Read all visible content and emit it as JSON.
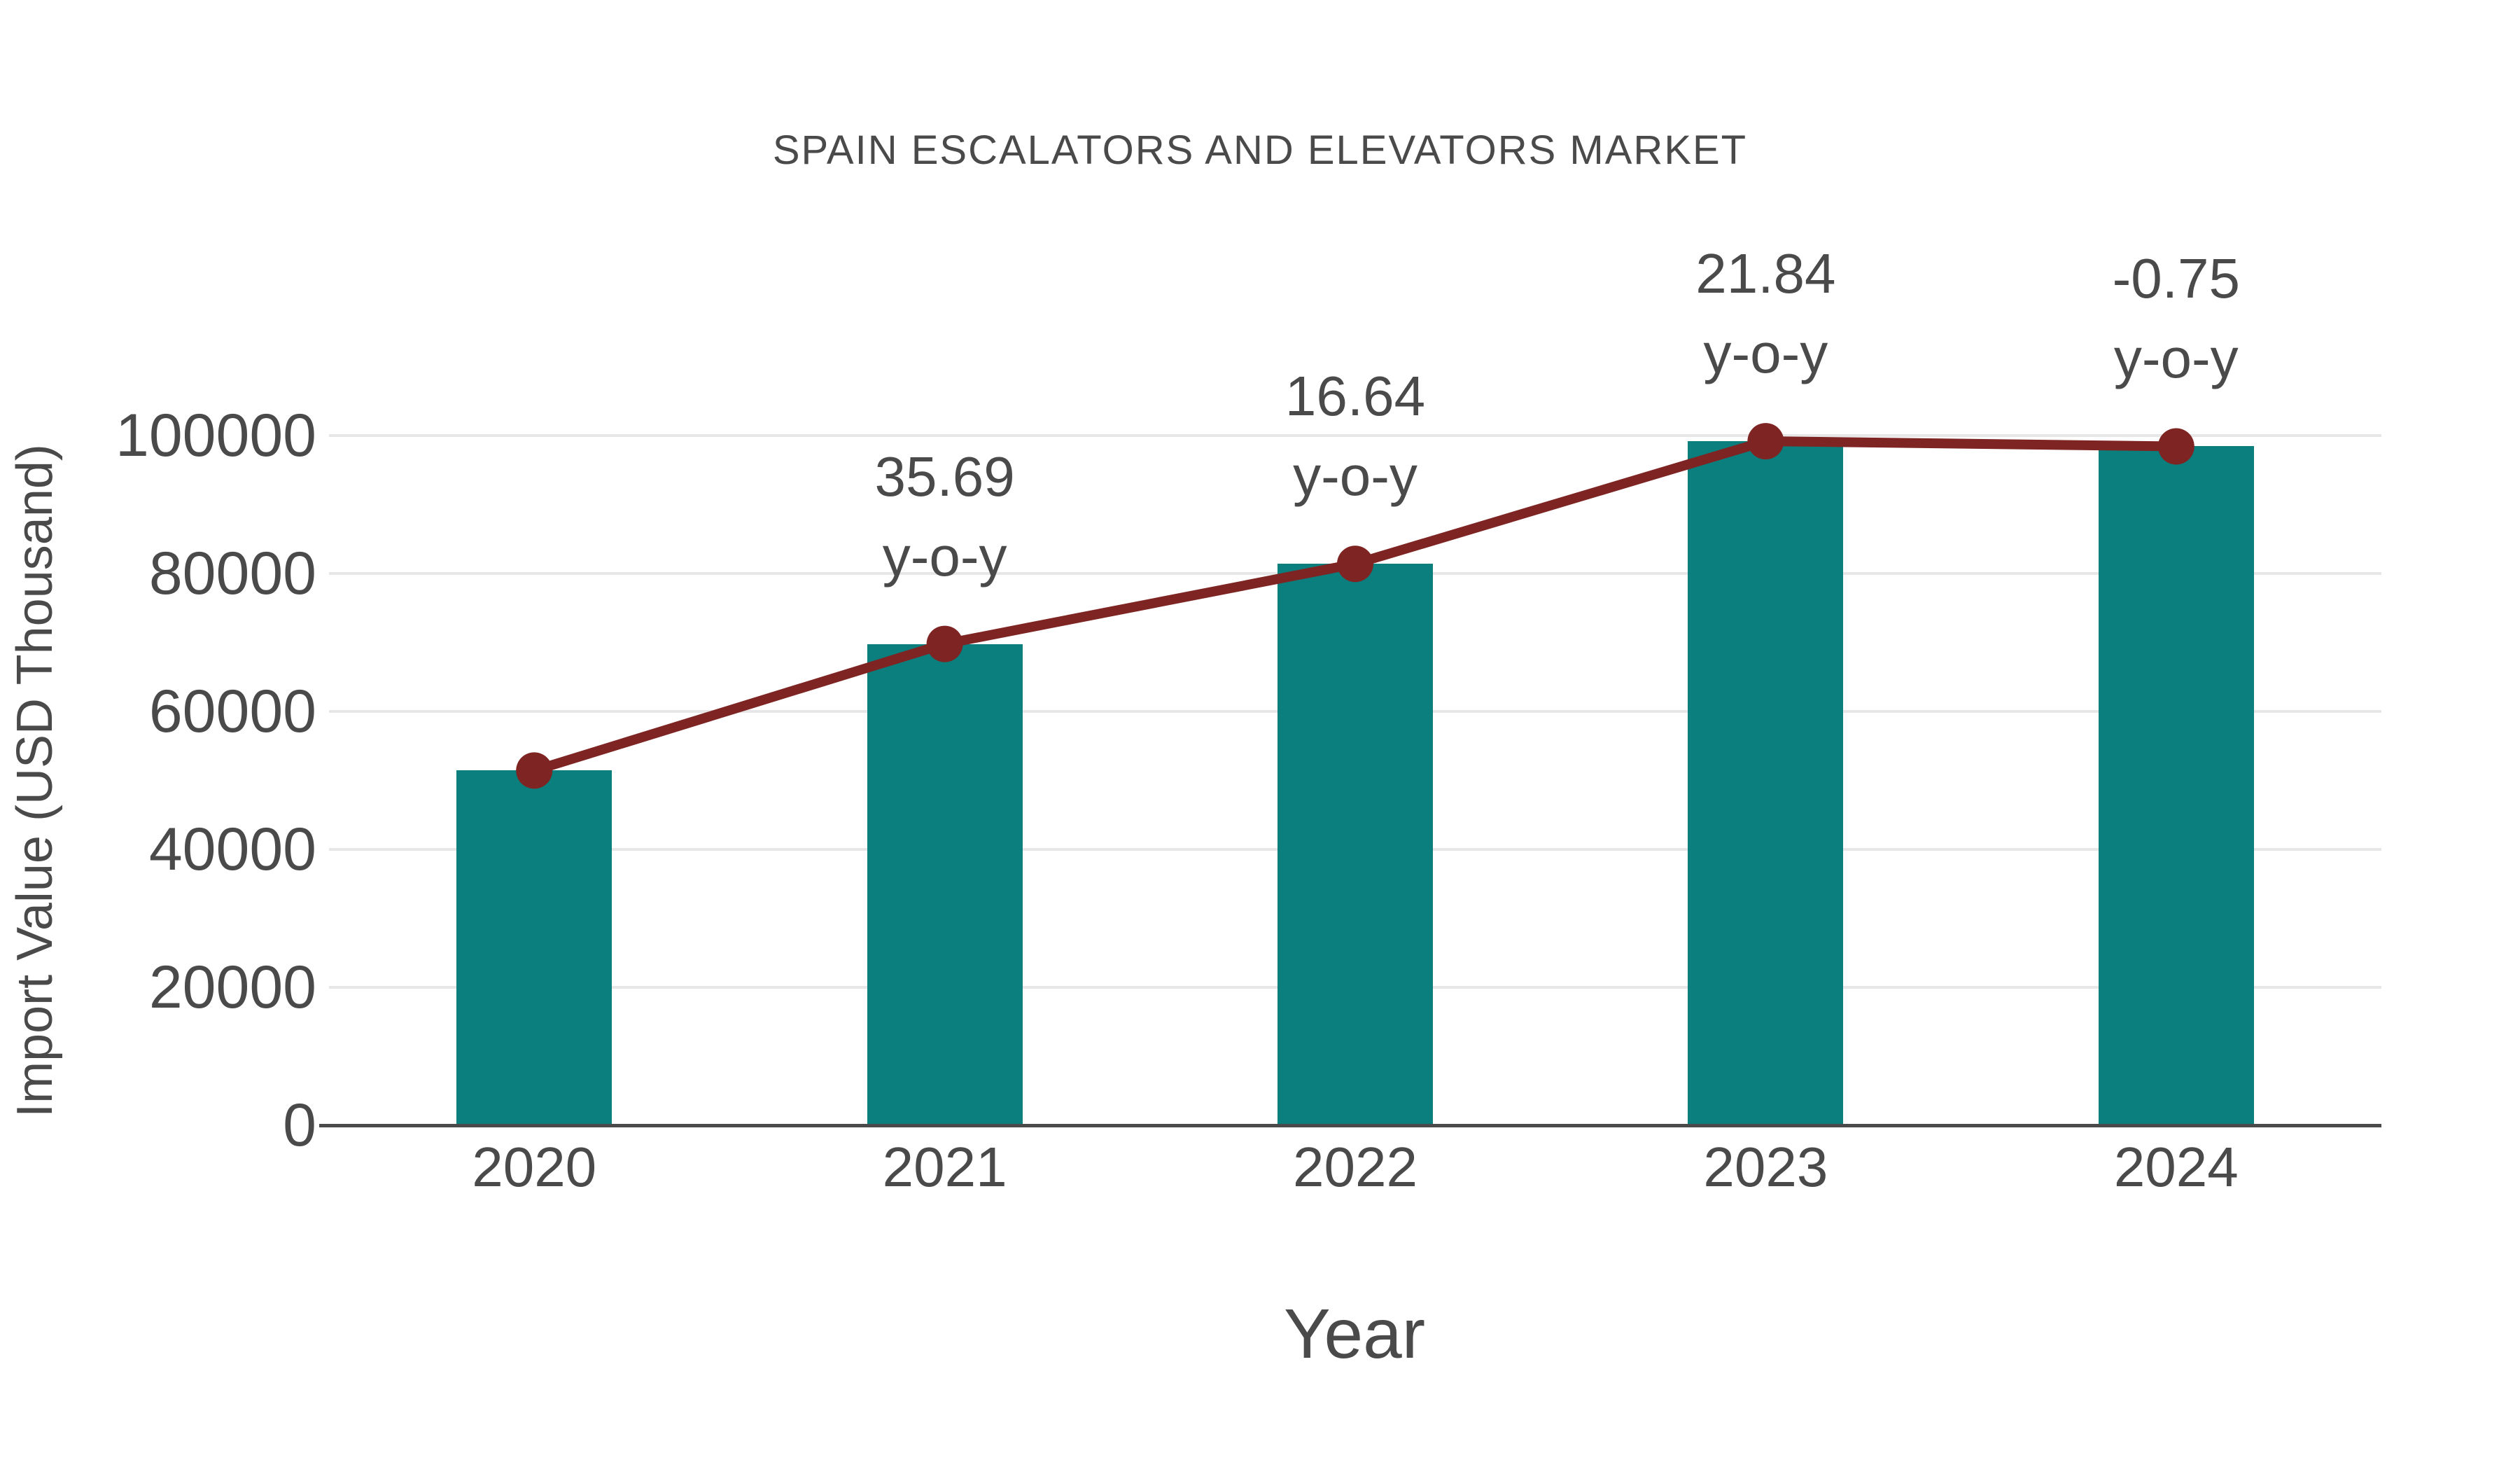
{
  "chart_data": {
    "type": "bar",
    "subtype": "bar-with-line-overlay",
    "title": "SPAIN ESCALATORS AND ELEVATORS MARKET",
    "xlabel": "Year",
    "ylabel": "Import Value (USD Thousand)",
    "categories": [
      "2020",
      "2021",
      "2022",
      "2023",
      "2024"
    ],
    "series": [
      {
        "type": "bar",
        "color": "#0a7f7d",
        "values": [
          51430,
          69790,
          81400,
          99180,
          98430
        ]
      },
      {
        "type": "line",
        "color": "#7e2423",
        "values": [
          51430,
          69790,
          81400,
          99180,
          98430
        ]
      }
    ],
    "annotations": [
      {
        "category": "2021",
        "line1": "35.69",
        "line2": "y-o-y"
      },
      {
        "category": "2022",
        "line1": "16.64",
        "line2": "y-o-y"
      },
      {
        "category": "2023",
        "line1": "21.84",
        "line2": "y-o-y"
      },
      {
        "category": "2024",
        "line1": "-0.75",
        "line2": "y-o-y"
      }
    ],
    "yticks": [
      0,
      20000,
      40000,
      60000,
      80000,
      100000
    ],
    "ylim": [
      0,
      100000
    ],
    "grid": true,
    "legend": false,
    "colors": {
      "bar": "#0a7f7d",
      "line": "#7e2423",
      "text": "#4a4a4a",
      "gridline": "#e7e7e7",
      "axis": "#4a4a4a",
      "background": "#ffffff"
    }
  }
}
